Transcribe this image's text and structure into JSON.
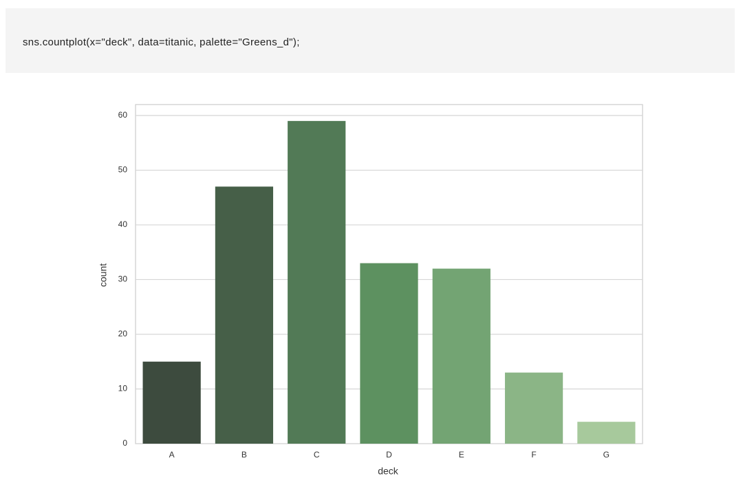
{
  "code": "sns.countplot(x=\"deck\", data=titanic, palette=\"Greens_d\");",
  "chart_data": {
    "type": "bar",
    "categories": [
      "A",
      "B",
      "C",
      "D",
      "E",
      "F",
      "G"
    ],
    "values": [
      15,
      47,
      59,
      33,
      32,
      13,
      4
    ],
    "colors": [
      "#3d4b3e",
      "#465f48",
      "#527a56",
      "#5d9160",
      "#73a473",
      "#8bb586",
      "#a7c99c"
    ],
    "xlabel": "deck",
    "ylabel": "count",
    "ylim": [
      0,
      62
    ],
    "yticks": [
      0,
      10,
      20,
      30,
      40,
      50,
      60
    ],
    "grid": true
  }
}
